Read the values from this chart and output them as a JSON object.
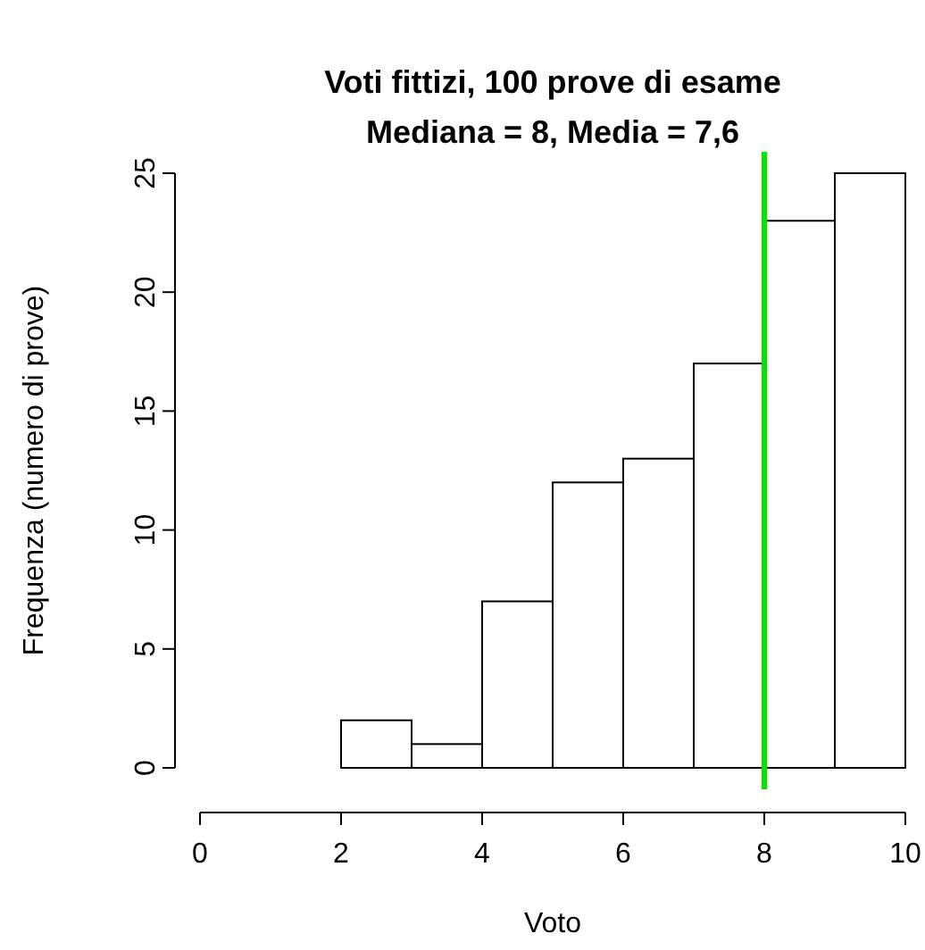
{
  "chart_data": {
    "type": "histogram",
    "title": "Voti fittizi, 100 prove di esame",
    "subtitle": "Mediana = 8, Media = 7,6",
    "xlabel": "Voto",
    "ylabel": "Frequenza (numero di prove)",
    "bins": [
      2,
      3,
      4,
      5,
      6,
      7,
      8,
      9,
      10
    ],
    "values": [
      2,
      1,
      7,
      12,
      13,
      17,
      23,
      25
    ],
    "color": "#ffffff",
    "xlim": [
      0,
      10
    ],
    "xticks": [
      0,
      2,
      4,
      6,
      8,
      10
    ],
    "ylim": [
      0,
      25
    ],
    "yticks": [
      0,
      5,
      10,
      15,
      20,
      25
    ],
    "ref_lines": [
      {
        "axis": "x",
        "value": 8,
        "color": "#00e600"
      }
    ],
    "grid": false
  }
}
